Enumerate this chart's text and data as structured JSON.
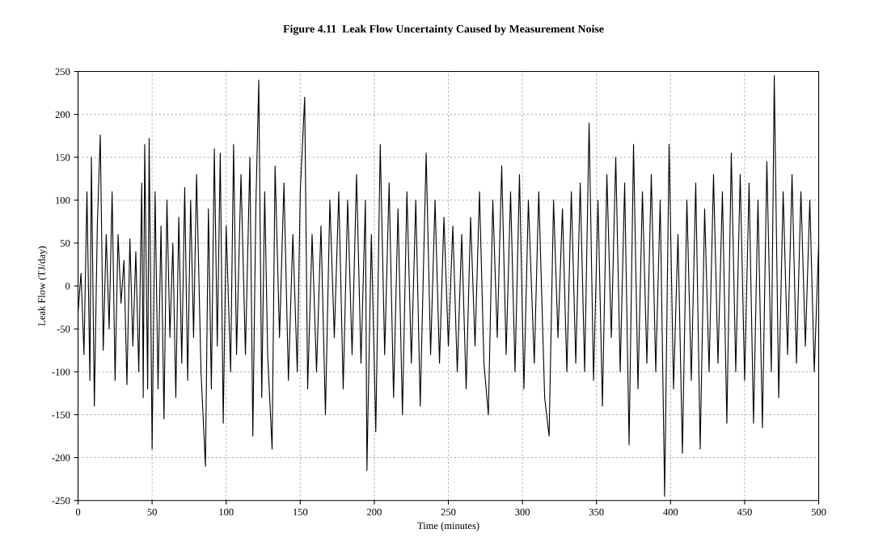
{
  "chart_data": {
    "type": "line",
    "title": "Figure 4.11  Leak Flow Uncertainty Caused by Measurement Noise",
    "xlabel": "Time (minutes)",
    "ylabel": "Leak Flow (TJ/day)",
    "x": [
      0,
      2,
      4,
      6,
      8,
      9,
      11,
      13,
      15,
      17,
      19,
      21,
      23,
      25,
      27,
      29,
      31,
      33,
      35,
      37,
      39,
      41,
      43,
      44,
      45,
      47,
      48,
      50,
      52,
      54,
      56,
      58,
      60,
      62,
      64,
      66,
      68,
      70,
      72,
      74,
      76,
      78,
      80,
      83,
      86,
      88,
      90,
      92,
      94,
      96,
      98,
      100,
      103,
      105,
      107,
      110,
      113,
      116,
      118,
      120,
      122,
      124,
      126,
      128,
      131,
      133,
      136,
      139,
      142,
      145,
      148,
      150,
      153,
      155,
      158,
      161,
      164,
      167,
      170,
      173,
      176,
      179,
      182,
      185,
      188,
      191,
      194,
      195,
      198,
      201,
      204,
      207,
      210,
      213,
      216,
      219,
      222,
      225,
      228,
      231,
      235,
      238,
      241,
      244,
      247,
      250,
      253,
      256,
      259,
      262,
      265,
      268,
      271,
      274,
      277,
      280,
      283,
      286,
      289,
      292,
      295,
      298,
      301,
      304,
      308,
      311,
      315,
      318,
      321,
      324,
      327,
      330,
      333,
      336,
      339,
      342,
      345,
      348,
      351,
      354,
      357,
      360,
      363,
      366,
      369,
      372,
      375,
      378,
      381,
      384,
      387,
      390,
      393,
      396,
      399,
      402,
      405,
      408,
      411,
      414,
      417,
      420,
      423,
      426,
      429,
      432,
      435,
      438,
      441,
      444,
      447,
      450,
      453,
      456,
      459,
      462,
      465,
      468,
      470,
      473,
      476,
      479,
      482,
      485,
      488,
      491,
      494,
      497,
      500
    ],
    "series": [
      {
        "color": "#000000",
        "values": [
          -30,
          15,
          -80,
          110,
          -110,
          150,
          -140,
          70,
          176,
          -75,
          60,
          -50,
          110,
          -110,
          60,
          -20,
          30,
          -115,
          55,
          -70,
          40,
          -100,
          120,
          -130,
          165,
          -120,
          172,
          -190,
          110,
          -120,
          70,
          -155,
          100,
          -60,
          50,
          -130,
          80,
          -90,
          115,
          -110,
          100,
          -60,
          130,
          -100,
          -210,
          90,
          -120,
          160,
          -70,
          155,
          -160,
          70,
          -100,
          165,
          -80,
          130,
          -80,
          150,
          -175,
          90,
          240,
          -130,
          110,
          -80,
          -190,
          140,
          -60,
          120,
          -110,
          60,
          -100,
          110,
          220,
          -120,
          60,
          -100,
          70,
          -150,
          100,
          -60,
          110,
          -120,
          100,
          -80,
          130,
          -90,
          100,
          -215,
          60,
          -170,
          165,
          -80,
          120,
          -130,
          90,
          -150,
          110,
          -90,
          100,
          -140,
          155,
          -80,
          100,
          -90,
          80,
          -70,
          70,
          -100,
          60,
          -120,
          80,
          -70,
          110,
          -90,
          -150,
          100,
          -60,
          140,
          -80,
          110,
          -100,
          130,
          -120,
          100,
          -90,
          110,
          -130,
          -175,
          100,
          -60,
          90,
          -100,
          110,
          -90,
          120,
          -100,
          190,
          -110,
          100,
          -140,
          130,
          -60,
          150,
          -100,
          120,
          -185,
          165,
          -120,
          110,
          -90,
          130,
          -100,
          100,
          -245,
          165,
          -120,
          60,
          -195,
          100,
          -110,
          120,
          -190,
          90,
          -100,
          130,
          -90,
          110,
          -160,
          155,
          -100,
          130,
          -110,
          120,
          -160,
          100,
          -165,
          145,
          -100,
          245,
          -130,
          110,
          -80,
          130,
          -90,
          110,
          -70,
          100,
          -100,
          50
        ]
      }
    ],
    "xlim": [
      0,
      500
    ],
    "xticks": [
      0,
      50,
      100,
      150,
      200,
      250,
      300,
      350,
      400,
      450,
      500
    ],
    "ylim": [
      -250,
      250
    ],
    "yticks": [
      -250,
      -200,
      -150,
      -100,
      -50,
      0,
      50,
      100,
      150,
      200,
      250
    ],
    "grid": true,
    "line_style": "solid",
    "marker": "none",
    "legend": false
  }
}
